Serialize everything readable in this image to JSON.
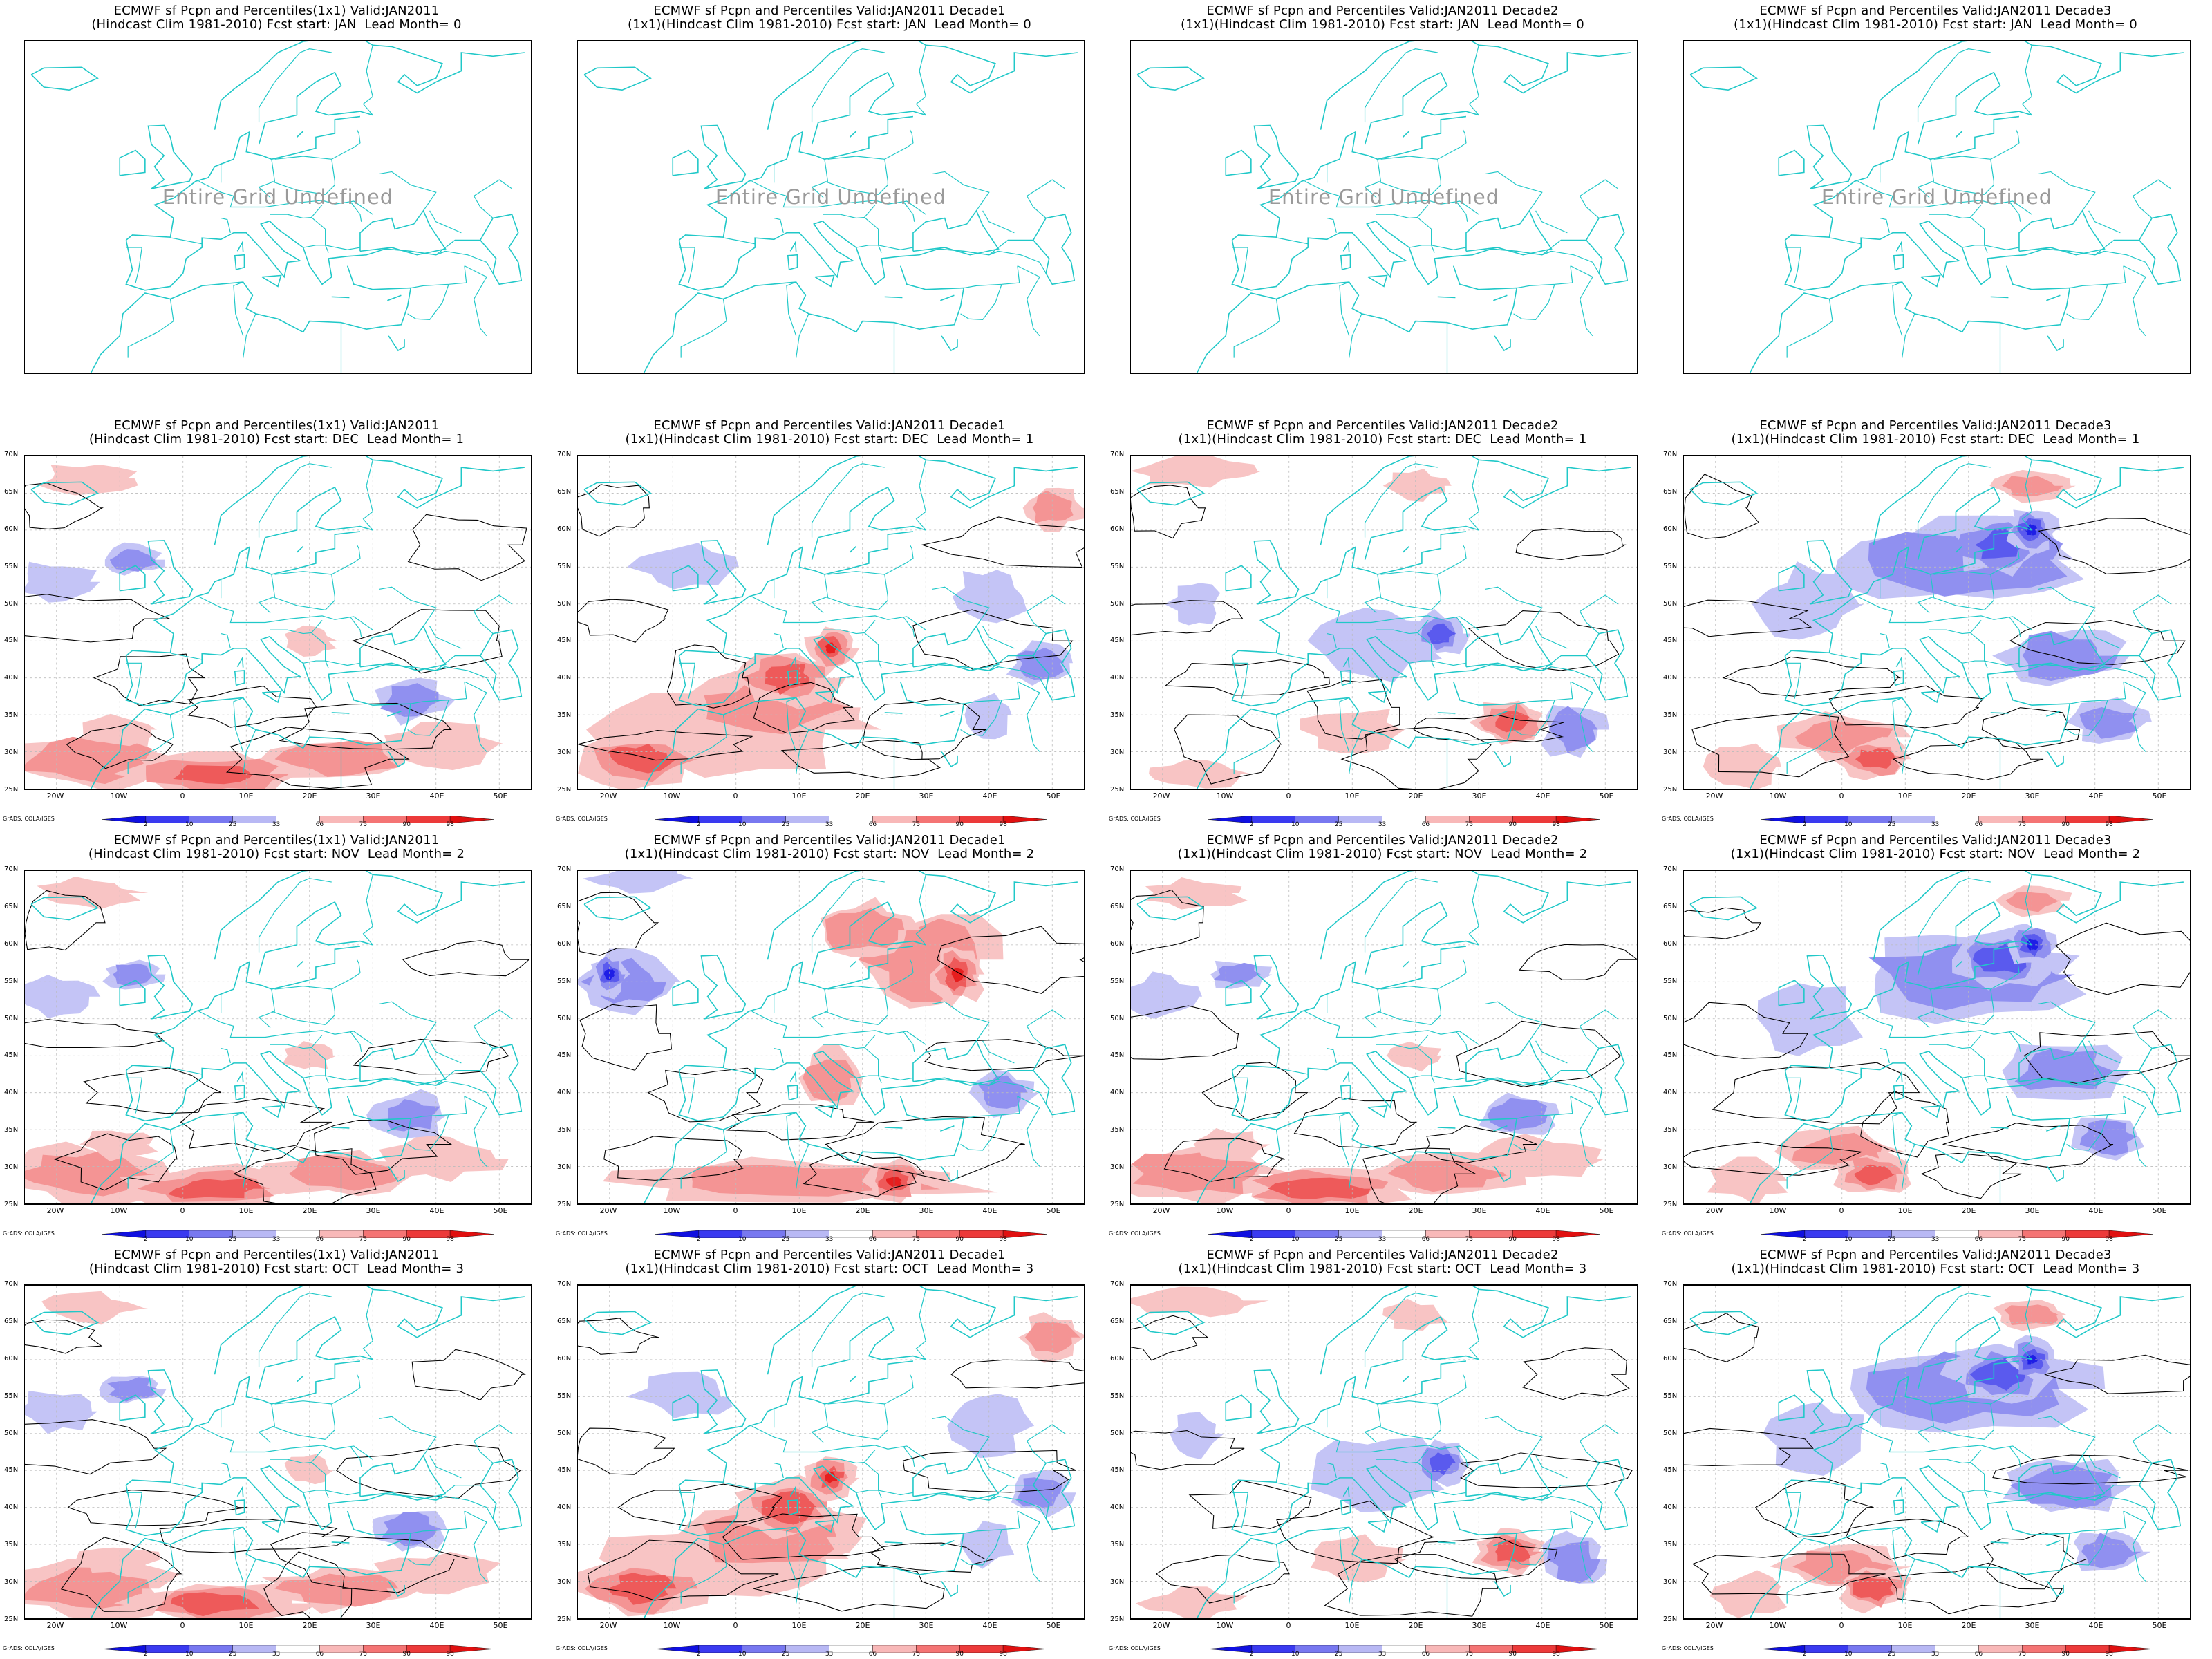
{
  "panels": [
    {
      "id": "r0c0",
      "title1": "ECMWF sf Pcpn and Percentiles(1x1) Valid:JAN2011",
      "title2": "(Hindcast Clim 1981-2010) Fcst start: JAN  Lead Month= 0",
      "undefined": "Entire Grid Undefined",
      "has_data": false
    },
    {
      "id": "r0c1",
      "title1": "ECMWF sf Pcpn and Percentiles Valid:JAN2011 Decade1",
      "title2": "(1x1)(Hindcast Clim 1981-2010) Fcst start: JAN  Lead Month= 0",
      "undefined": "Entire Grid Undefined",
      "has_data": false
    },
    {
      "id": "r0c2",
      "title1": "ECMWF sf Pcpn and Percentiles Valid:JAN2011 Decade2",
      "title2": "(1x1)(Hindcast Clim 1981-2010) Fcst start: JAN  Lead Month= 0",
      "undefined": "Entire Grid Undefined",
      "has_data": false
    },
    {
      "id": "r0c3",
      "title1": "ECMWF sf Pcpn and Percentiles Valid:JAN2011 Decade3",
      "title2": "(1x1)(Hindcast Clim 1981-2010) Fcst start: JAN  Lead Month= 0",
      "undefined": "Entire Grid Undefined",
      "has_data": false
    },
    {
      "id": "r1c0",
      "title1": "ECMWF sf Pcpn and Percentiles(1x1) Valid:JAN2011",
      "title2": "(Hindcast Clim 1981-2010) Fcst start: DEC  Lead Month= 1",
      "has_data": true,
      "pattern": "south-red"
    },
    {
      "id": "r1c1",
      "title1": "ECMWF sf Pcpn and Percentiles Valid:JAN2011 Decade1",
      "title2": "(1x1)(Hindcast Clim 1981-2010) Fcst start: DEC  Lead Month= 1",
      "has_data": true,
      "pattern": "med-red"
    },
    {
      "id": "r1c2",
      "title1": "ECMWF sf Pcpn and Percentiles Valid:JAN2011 Decade2",
      "title2": "(1x1)(Hindcast Clim 1981-2010) Fcst start: DEC  Lead Month= 1",
      "has_data": true,
      "pattern": "mixed"
    },
    {
      "id": "r1c3",
      "title1": "ECMWF sf Pcpn and Percentiles Valid:JAN2011 Decade3",
      "title2": "(1x1)(Hindcast Clim 1981-2010) Fcst start: DEC  Lead Month= 1",
      "has_data": true,
      "pattern": "central-blue"
    },
    {
      "id": "r2c0",
      "title1": "ECMWF sf Pcpn and Percentiles(1x1) Valid:JAN2011",
      "title2": "(Hindcast Clim 1981-2010) Fcst start: NOV  Lead Month= 2",
      "has_data": true,
      "pattern": "south-red"
    },
    {
      "id": "r2c1",
      "title1": "ECMWF sf Pcpn and Percentiles Valid:JAN2011 Decade1",
      "title2": "(1x1)(Hindcast Clim 1981-2010) Fcst start: NOV  Lead Month= 2",
      "has_data": true,
      "pattern": "east-red"
    },
    {
      "id": "r2c2",
      "title1": "ECMWF sf Pcpn and Percentiles Valid:JAN2011 Decade2",
      "title2": "(1x1)(Hindcast Clim 1981-2010) Fcst start: NOV  Lead Month= 2",
      "has_data": true,
      "pattern": "south-red"
    },
    {
      "id": "r2c3",
      "title1": "ECMWF sf Pcpn and Percentiles Valid:JAN2011 Decade3",
      "title2": "(1x1)(Hindcast Clim 1981-2010) Fcst start: NOV  Lead Month= 2",
      "has_data": true,
      "pattern": "central-blue"
    },
    {
      "id": "r3c0",
      "title1": "ECMWF sf Pcpn and Percentiles(1x1) Valid:JAN2011",
      "title2": "(Hindcast Clim 1981-2010) Fcst start: OCT  Lead Month= 3",
      "has_data": true,
      "pattern": "south-red"
    },
    {
      "id": "r3c1",
      "title1": "ECMWF sf Pcpn and Percentiles Valid:JAN2011 Decade1",
      "title2": "(1x1)(Hindcast Clim 1981-2010) Fcst start: OCT  Lead Month= 3",
      "has_data": true,
      "pattern": "med-red"
    },
    {
      "id": "r3c2",
      "title1": "ECMWF sf Pcpn and Percentiles Valid:JAN2011 Decade2",
      "title2": "(1x1)(Hindcast Clim 1981-2010) Fcst start: OCT  Lead Month= 3",
      "has_data": true,
      "pattern": "mixed"
    },
    {
      "id": "r3c3",
      "title1": "ECMWF sf Pcpn and Percentiles Valid:JAN2011 Decade3",
      "title2": "(1x1)(Hindcast Clim 1981-2010) Fcst start: OCT  Lead Month= 3",
      "has_data": true,
      "pattern": "central-blue"
    }
  ],
  "lat_labels": [
    "70N",
    "65N",
    "60N",
    "55N",
    "50N",
    "45N",
    "40N",
    "35N",
    "30N",
    "25N"
  ],
  "lon_labels": [
    "20W",
    "10W",
    "0",
    "10E",
    "20E",
    "30E",
    "40E",
    "50E"
  ],
  "colorbar": {
    "labels": [
      "2",
      "10",
      "25",
      "33",
      "66",
      "75",
      "90",
      "98"
    ],
    "colors": [
      "#1010e0",
      "#3a3af0",
      "#7878f0",
      "#b8b8f4",
      "#ffffff",
      "#f8b8b8",
      "#f47474",
      "#ec3a3a",
      "#e01010"
    ]
  },
  "credit": "GrADS: COLA/IGES",
  "colors": {
    "coast": "#20c8c8",
    "contour": "#000000",
    "frame": "#000000"
  }
}
